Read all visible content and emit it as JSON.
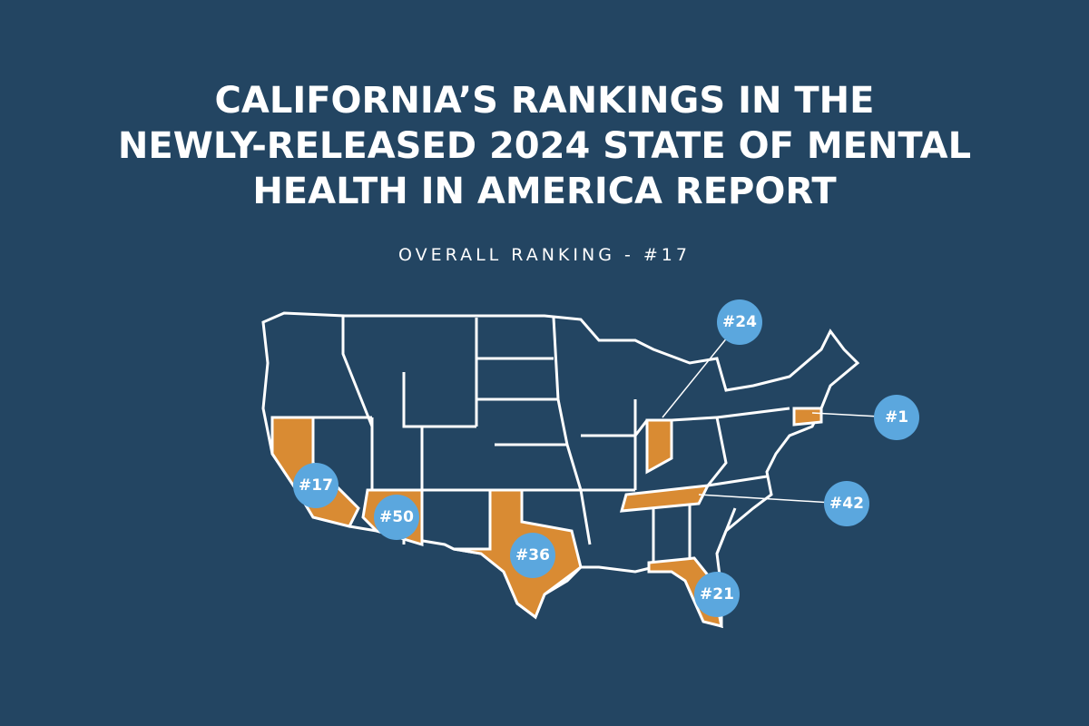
{
  "header": {
    "title_lines": [
      "CALIFORNIA’S RANKINGS IN THE",
      "NEWLY-RELEASED 2024 STATE OF MENTAL",
      "HEALTH IN AMERICA REPORT"
    ],
    "subtitle": "OVERALL RANKING - #17"
  },
  "map": {
    "badges": [
      {
        "label": "#24"
      },
      {
        "label": "#1"
      },
      {
        "label": "#17"
      },
      {
        "label": "#50"
      },
      {
        "label": "#36"
      },
      {
        "label": "#42"
      },
      {
        "label": "#21"
      }
    ]
  }
}
